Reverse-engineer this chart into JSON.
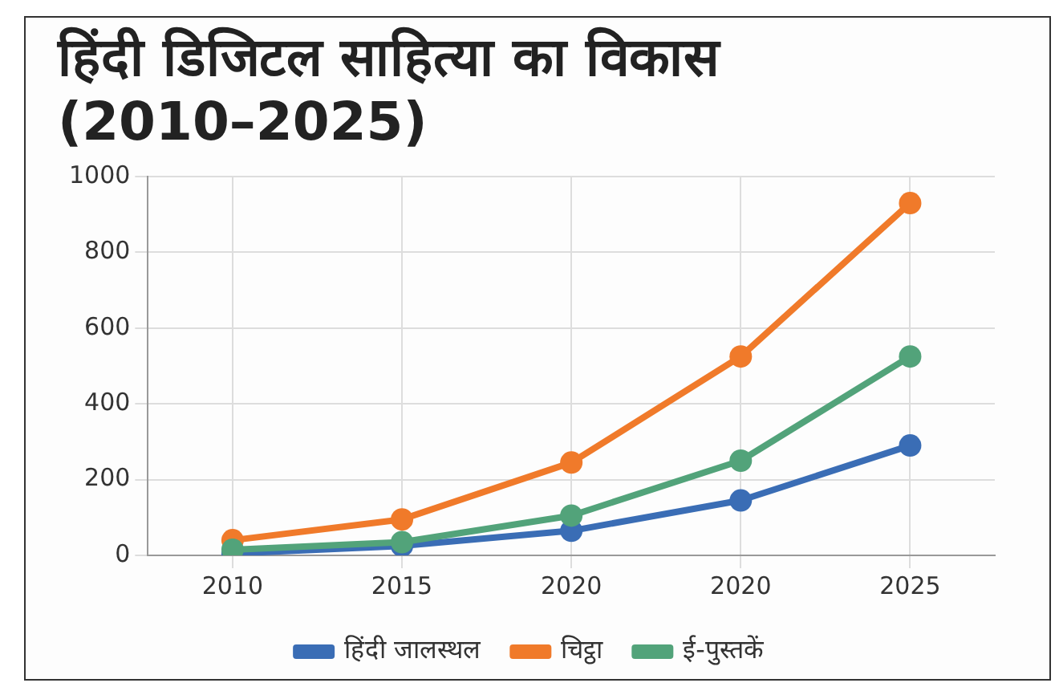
{
  "chart_data": {
    "type": "line",
    "title": "हिंदी डिजिटल साहित्या का विकास (2010–2025)",
    "categories": [
      "2010",
      "2015",
      "2020",
      "2020",
      "2025"
    ],
    "series": [
      {
        "name": "हिंदी जालस्थल",
        "color": "#3a6db5",
        "values": [
          5,
          25,
          65,
          145,
          290
        ]
      },
      {
        "name": "चिट्ठा",
        "color": "#f07a2a",
        "values": [
          40,
          95,
          245,
          525,
          930
        ]
      },
      {
        "name": "ई-पुस्तकें",
        "color": "#52a37a",
        "values": [
          15,
          35,
          105,
          250,
          525
        ]
      }
    ],
    "ylim": [
      0,
      1000
    ],
    "yticks": [
      0,
      200,
      400,
      600,
      800,
      1000
    ],
    "grid": true,
    "legend": "bottom",
    "marker": "circle",
    "line_style": "solid"
  }
}
